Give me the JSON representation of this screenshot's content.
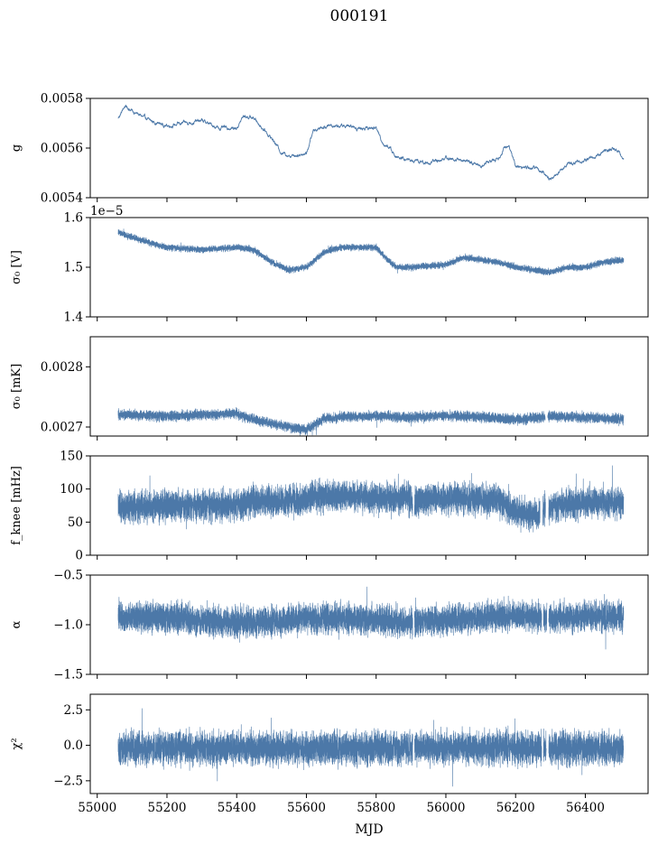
{
  "title": "000191",
  "colors": {
    "series": "#4c78a8",
    "axis": "#000000",
    "background": "#ffffff"
  },
  "chart_data": {
    "type": "line",
    "xlabel": "MJD",
    "xlim": [
      54980,
      56580
    ],
    "xticks": [
      55000,
      55200,
      55400,
      55600,
      55800,
      56000,
      56200,
      56400
    ],
    "x_range_data": [
      55060,
      56510
    ],
    "panels": [
      {
        "name": "g-panel",
        "ylabel": "g",
        "ylim": [
          0.0054,
          0.0058
        ],
        "yticks": [
          0.0054,
          0.0056,
          0.0058
        ],
        "ytick_labels": [
          "0.0054",
          "0.0056",
          "0.0058"
        ],
        "offset_text": "",
        "noise": 3.5e-06,
        "gaps": [],
        "trend_x": [
          55060,
          55080,
          55100,
          55150,
          55200,
          55250,
          55300,
          55350,
          55400,
          55420,
          55450,
          55500,
          55530,
          55560,
          55600,
          55620,
          55650,
          55700,
          55750,
          55800,
          55820,
          55840,
          55860,
          55900,
          55950,
          56000,
          56050,
          56100,
          56150,
          56180,
          56200,
          56230,
          56260,
          56300,
          56350,
          56400,
          56450,
          56480,
          56510
        ],
        "trend_y": [
          0.00572,
          0.00577,
          0.00575,
          0.00571,
          0.00569,
          0.0057,
          0.00571,
          0.00568,
          0.00568,
          0.00573,
          0.00572,
          0.00564,
          0.00558,
          0.00557,
          0.00558,
          0.00567,
          0.00569,
          0.00569,
          0.00568,
          0.00568,
          0.00562,
          0.0056,
          0.00556,
          0.00555,
          0.00554,
          0.00556,
          0.00555,
          0.00553,
          0.00556,
          0.00562,
          0.00553,
          0.00552,
          0.00552,
          0.00547,
          0.00554,
          0.00555,
          0.00558,
          0.0056,
          0.00556
        ]
      },
      {
        "name": "sigma0-v-panel",
        "ylabel": "σ₀ [V]",
        "ylim": [
          1.4e-05,
          1.6e-05
        ],
        "yticks": [
          1.4e-05,
          1.5e-05,
          1.6e-05
        ],
        "ytick_labels": [
          "1.4",
          "1.5",
          "1.6"
        ],
        "offset_text": "1e−5",
        "noise": 3e-08,
        "gaps": [],
        "trend_x": [
          55060,
          55100,
          55200,
          55300,
          55400,
          55450,
          55500,
          55550,
          55600,
          55650,
          55700,
          55800,
          55840,
          55860,
          55900,
          56000,
          56050,
          56100,
          56150,
          56200,
          56250,
          56300,
          56350,
          56400,
          56450,
          56510
        ],
        "trend_y": [
          1.57e-05,
          1.56e-05,
          1.54e-05,
          1.535e-05,
          1.54e-05,
          1.535e-05,
          1.51e-05,
          1.495e-05,
          1.5e-05,
          1.53e-05,
          1.54e-05,
          1.54e-05,
          1.51e-05,
          1.5e-05,
          1.5e-05,
          1.505e-05,
          1.52e-05,
          1.515e-05,
          1.51e-05,
          1.5e-05,
          1.495e-05,
          1.49e-05,
          1.5e-05,
          1.5e-05,
          1.51e-05,
          1.515e-05
        ]
      },
      {
        "name": "sigma0-mk-panel",
        "ylabel": "σ₀ [mK]",
        "ylim": [
          0.002685,
          0.00285
        ],
        "yticks": [
          0.0027,
          0.0028
        ],
        "ytick_labels": [
          "0.0027",
          "0.0028"
        ],
        "offset_text": "",
        "noise": 4e-06,
        "gaps": [
          [
            56285,
            56292
          ]
        ],
        "trend_x": [
          55060,
          55200,
          55400,
          55450,
          55550,
          55600,
          55650,
          55700,
          55800,
          55900,
          56000,
          56100,
          56200,
          56300,
          56400,
          56510
        ],
        "trend_y": [
          0.002721,
          0.002718,
          0.002722,
          0.002712,
          0.0027,
          0.002695,
          0.002714,
          0.002717,
          0.002718,
          0.002716,
          0.002719,
          0.002717,
          0.002712,
          0.002718,
          0.002716,
          0.002713
        ]
      },
      {
        "name": "fknee-panel",
        "ylabel": "f_knee [mHz]",
        "ylim": [
          0,
          150
        ],
        "yticks": [
          0,
          50,
          100,
          150
        ],
        "ytick_labels": [
          "0",
          "50",
          "100",
          "150"
        ],
        "offset_text": "",
        "noise": 11,
        "gaps": [
          [
            55905,
            55910
          ],
          [
            56270,
            56278
          ],
          [
            56286,
            56295
          ]
        ],
        "trend_x": [
          55060,
          55200,
          55410,
          55420,
          55600,
          55620,
          55800,
          55900,
          56000,
          56150,
          56200,
          56260,
          56300,
          56400,
          56510
        ],
        "trend_y": [
          72,
          74,
          75,
          80,
          82,
          90,
          88,
          85,
          86,
          84,
          65,
          60,
          75,
          80,
          80
        ]
      },
      {
        "name": "alpha-panel",
        "ylabel": "α",
        "ylim": [
          -1.5,
          -0.5
        ],
        "yticks": [
          -1.5,
          -1.0,
          -0.5
        ],
        "ytick_labels": [
          "−1.5",
          "−1.0",
          "−0.5"
        ],
        "offset_text": "",
        "noise": 0.07,
        "gaps": [
          [
            55905,
            55910
          ],
          [
            56275,
            56280
          ],
          [
            56290,
            56295
          ]
        ],
        "trend_x": [
          55060,
          55200,
          55400,
          55500,
          55600,
          55800,
          55900,
          56000,
          56100,
          56200,
          56300,
          56400,
          56510
        ],
        "trend_y": [
          -0.92,
          -0.93,
          -0.98,
          -0.97,
          -0.93,
          -0.95,
          -0.97,
          -0.95,
          -0.93,
          -0.9,
          -0.93,
          -0.92,
          -0.92
        ]
      },
      {
        "name": "chi2-panel",
        "ylabel": "χ²",
        "ylim": [
          -3.4,
          3.6
        ],
        "yticks": [
          -2.5,
          0.0,
          2.5
        ],
        "ytick_labels": [
          "−2.5",
          "0.0",
          "2.5"
        ],
        "offset_text": "",
        "noise": 0.55,
        "gaps": [
          [
            55905,
            55910
          ],
          [
            56275,
            56280
          ],
          [
            56288,
            56295
          ]
        ],
        "trend_x": [
          55060,
          56510
        ],
        "trend_y": [
          -0.2,
          -0.2
        ]
      }
    ]
  }
}
